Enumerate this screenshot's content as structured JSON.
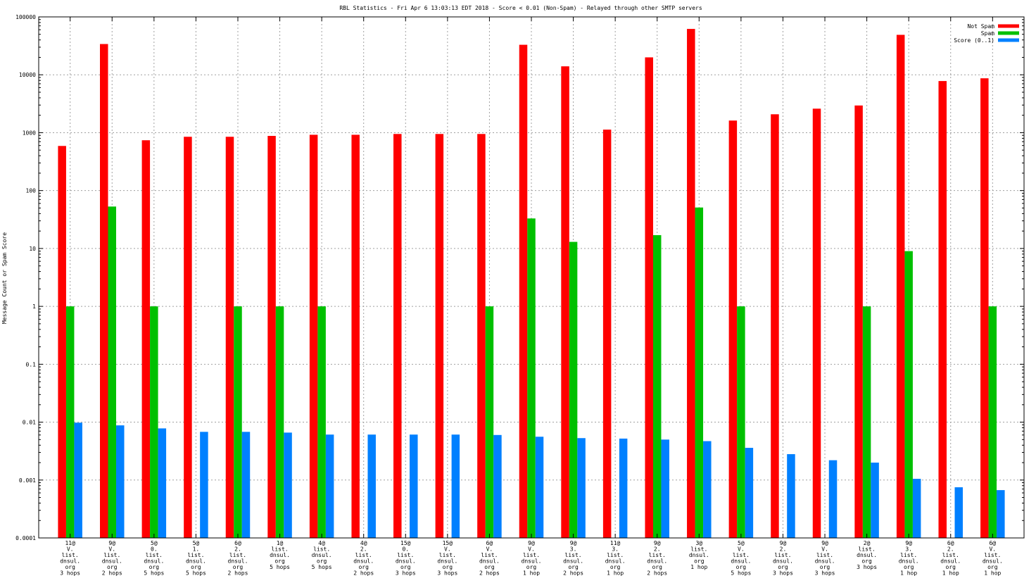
{
  "chart_data": {
    "type": "bar",
    "title": "RBL Statistics - Fri Apr  6 13:03:13 EDT 2018 - Score < 0.01 (Non-Spam) - Relayed through other SMTP servers",
    "ylabel": "Message Count or Spam Score",
    "xlabel": "",
    "yscale": "log",
    "ylim": [
      0.0001,
      100000
    ],
    "yticks": [
      "0.0001",
      "0.001",
      "0.01",
      "0.1",
      "1",
      "10",
      "100",
      "1000",
      "10000",
      "100000"
    ],
    "grid": true,
    "legend_position": "top-right",
    "categories": [
      [
        "11@",
        "V.",
        "list.",
        "dnsul.",
        "org",
        "3 hops"
      ],
      [
        "9@",
        "V.",
        "list.",
        "dnsul.",
        "org",
        "2 hops"
      ],
      [
        "5@",
        "0.",
        "list.",
        "dnsul.",
        "org",
        "5 hops"
      ],
      [
        "5@",
        "1.",
        "list.",
        "dnsul.",
        "org",
        "5 hops"
      ],
      [
        "6@",
        "2.",
        "list.",
        "dnsul.",
        "org",
        "2 hops"
      ],
      [
        "1@",
        "list.",
        "dnsul.",
        "org",
        "5 hops"
      ],
      [
        "4@",
        "list.",
        "dnsul.",
        "org",
        "5 hops"
      ],
      [
        "4@",
        "2.",
        "list.",
        "dnsul.",
        "org",
        "2 hops"
      ],
      [
        "15@",
        "0.",
        "list.",
        "dnsul.",
        "org",
        "3 hops"
      ],
      [
        "15@",
        "V.",
        "list.",
        "dnsul.",
        "org",
        "3 hops"
      ],
      [
        "6@",
        "V.",
        "list.",
        "dnsul.",
        "org",
        "2 hops"
      ],
      [
        "9@",
        "V.",
        "list.",
        "dnsul.",
        "org",
        "1 hop"
      ],
      [
        "9@",
        "3.",
        "list.",
        "dnsul.",
        "org",
        "2 hops"
      ],
      [
        "11@",
        "3.",
        "list.",
        "dnsul.",
        "org",
        "1 hop"
      ],
      [
        "9@",
        "2.",
        "list.",
        "dnsul.",
        "org",
        "2 hops"
      ],
      [
        "3@",
        "list.",
        "dnsul.",
        "org",
        "1 hop"
      ],
      [
        "5@",
        "V.",
        "list.",
        "dnsul.",
        "org",
        "5 hops"
      ],
      [
        "9@",
        "2.",
        "list.",
        "dnsul.",
        "org",
        "3 hops"
      ],
      [
        "9@",
        "V.",
        "list.",
        "dnsul.",
        "org",
        "3 hops"
      ],
      [
        "2@",
        "list.",
        "dnsul.",
        "org",
        "3 hops"
      ],
      [
        "9@",
        "3.",
        "list.",
        "dnsul.",
        "org",
        "1 hop"
      ],
      [
        "6@",
        "2.",
        "list.",
        "dnsul.",
        "org",
        "1 hop"
      ],
      [
        "6@",
        "V.",
        "list.",
        "dnsul.",
        "org",
        "1 hop"
      ]
    ],
    "series": [
      {
        "name": "Not Spam",
        "color": "#ff0000",
        "values": [
          590,
          34000,
          740,
          850,
          850,
          880,
          920,
          920,
          950,
          950,
          950,
          33000,
          14000,
          1130,
          20000,
          62000,
          1620,
          2080,
          2600,
          2950,
          49000,
          7800,
          8700
        ]
      },
      {
        "name": "Spam",
        "color": "#00c000",
        "values": [
          1,
          53,
          1,
          null,
          1,
          1,
          1,
          null,
          null,
          null,
          1,
          33,
          13,
          null,
          17,
          51,
          1,
          null,
          null,
          1,
          9,
          null,
          1
        ]
      },
      {
        "name": "Score (0..1)",
        "color": "#0080ff",
        "values": [
          0.0098,
          0.0088,
          0.0078,
          0.0068,
          0.0068,
          0.0066,
          0.0061,
          0.0061,
          0.0061,
          0.0061,
          0.006,
          0.0056,
          0.0053,
          0.0052,
          0.005,
          0.0047,
          0.0036,
          0.0028,
          0.0022,
          0.002,
          0.00105,
          0.00075,
          0.00067
        ]
      }
    ]
  }
}
